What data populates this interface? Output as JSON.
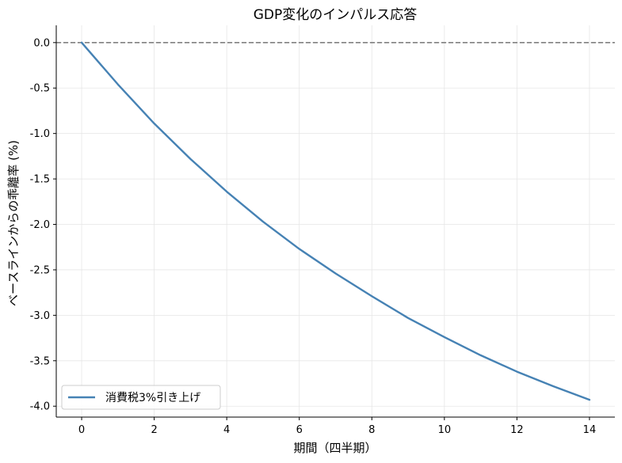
{
  "chart_data": {
    "type": "line",
    "title": "GDP変化のインパルス応答",
    "xlabel": "期間（四半期）",
    "ylabel": "ベースラインからの乖離率 (%)",
    "xlim": [
      -0.7,
      14.7
    ],
    "ylim": [
      -4.12,
      0.19
    ],
    "xticks": [
      0,
      2,
      4,
      6,
      8,
      10,
      12,
      14
    ],
    "yticks": [
      0.0,
      -0.5,
      -1.0,
      -1.5,
      -2.0,
      -2.5,
      -3.0,
      -3.5,
      -4.0
    ],
    "ytick_labels": [
      "0.0",
      "-0.5",
      "-1.0",
      "-1.5",
      "-2.0",
      "-2.5",
      "-3.0",
      "-3.5",
      "-4.0"
    ],
    "grid": true,
    "reference_line": {
      "y": 0.0,
      "style": "dashed",
      "color": "#808080"
    },
    "legend": {
      "placement": "lower-left"
    },
    "series": [
      {
        "name": "消費税3%引き上げ",
        "color": "#4682b4",
        "x": [
          0,
          1,
          2,
          3,
          4,
          5,
          6,
          7,
          8,
          9,
          10,
          11,
          12,
          13,
          14
        ],
        "y": [
          0.0,
          -0.46,
          -0.89,
          -1.28,
          -1.64,
          -1.97,
          -2.27,
          -2.54,
          -2.79,
          -3.03,
          -3.24,
          -3.44,
          -3.62,
          -3.78,
          -3.93
        ]
      }
    ]
  }
}
